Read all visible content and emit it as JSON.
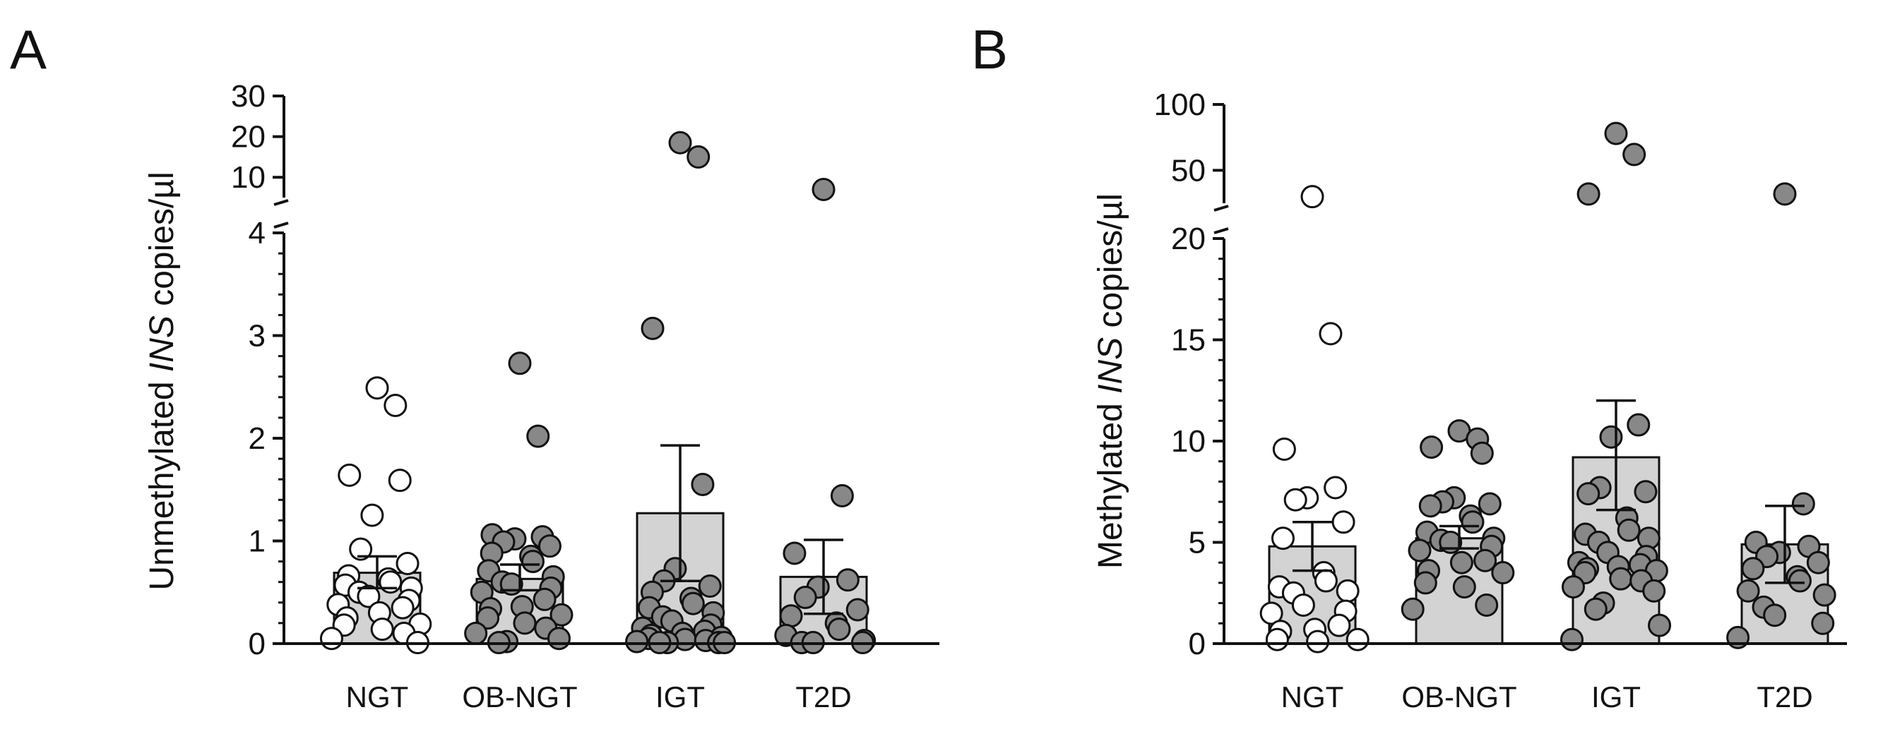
{
  "chart_data": [
    {
      "panel": "A",
      "type": "bar",
      "ylabel_pre": "Unmethylated ",
      "ylabel_it": "INS",
      "ylabel_post": " copies/µl",
      "categories": [
        "NGT",
        "OB-NGT",
        "IGT",
        "T2D"
      ],
      "bar_means": [
        0.69,
        0.63,
        1.27,
        0.65
      ],
      "error_bars": [
        [
          0.54,
          0.85
        ],
        [
          0.52,
          0.77
        ],
        [
          0.61,
          1.93
        ],
        [
          0.29,
          1.01
        ]
      ],
      "ylim_lower": [
        0,
        4
      ],
      "yticks_lower": [
        0,
        1,
        2,
        3,
        4
      ],
      "ylim_upper": [
        5,
        30
      ],
      "yticks_upper": [
        10,
        20,
        30
      ],
      "axis_break": true,
      "points": [
        [
          2.49,
          2.32,
          1.64,
          1.59,
          1.25,
          0.92,
          0.78,
          0.66,
          0.63,
          0.6,
          0.57,
          0.54,
          0.5,
          0.46,
          0.42,
          0.38,
          0.35,
          0.3,
          0.25,
          0.19,
          0.18,
          0.14,
          0.1,
          0.05,
          0.01
        ],
        [
          2.73,
          2.02,
          1.06,
          1.04,
          1.02,
          0.99,
          0.95,
          0.88,
          0.85,
          0.8,
          0.71,
          0.65,
          0.6,
          0.58,
          0.54,
          0.5,
          0.43,
          0.36,
          0.34,
          0.28,
          0.25,
          0.2,
          0.15,
          0.1,
          0.05,
          0.02,
          0.01
        ],
        [
          18.5,
          15.0,
          3.07,
          1.55,
          0.73,
          0.61,
          0.56,
          0.5,
          0.44,
          0.39,
          0.35,
          0.3,
          0.26,
          0.22,
          0.18,
          0.15,
          0.12,
          0.1,
          0.08,
          0.06,
          0.05,
          0.04,
          0.03,
          0.02,
          0.01,
          0.01,
          0.01,
          0.01
        ],
        [
          7.0,
          1.44,
          0.88,
          0.62,
          0.55,
          0.45,
          0.33,
          0.27,
          0.2,
          0.14,
          0.08,
          0.03,
          0.01,
          0.01,
          0.01
        ]
      ],
      "marker_fill": [
        "#ffffff",
        "#888888",
        "#888888",
        "#888888"
      ]
    },
    {
      "panel": "B",
      "type": "bar",
      "ylabel_pre": "Methylated ",
      "ylabel_it": "INS",
      "ylabel_post": " copies/µl",
      "categories": [
        "NGT",
        "OB-NGT",
        "IGT",
        "T2D"
      ],
      "bar_means": [
        4.8,
        5.2,
        9.2,
        4.9
      ],
      "error_bars": [
        [
          3.6,
          6.0
        ],
        [
          4.7,
          5.8
        ],
        [
          6.6,
          12.0
        ],
        [
          3.0,
          6.8
        ]
      ],
      "ylim_lower": [
        0,
        20
      ],
      "yticks_lower": [
        0,
        5,
        10,
        15,
        20
      ],
      "ylim_upper": [
        25,
        100
      ],
      "yticks_upper": [
        50,
        100
      ],
      "axis_break": true,
      "points": [
        [
          30.0,
          15.3,
          9.6,
          7.7,
          7.2,
          7.1,
          6.0,
          5.2,
          3.5,
          3.1,
          2.8,
          2.6,
          2.5,
          1.9,
          1.6,
          1.5,
          0.9,
          0.7,
          0.6,
          0.2,
          0.2,
          0.1
        ],
        [
          10.5,
          10.1,
          9.7,
          9.4,
          7.2,
          7.0,
          6.9,
          6.8,
          6.3,
          6.0,
          5.5,
          5.2,
          5.1,
          5.0,
          4.8,
          4.6,
          4.1,
          4.0,
          3.6,
          3.5,
          3.0,
          2.8,
          1.9,
          1.7
        ],
        [
          78,
          62,
          32,
          10.8,
          10.2,
          7.7,
          7.5,
          7.4,
          6.2,
          5.6,
          5.4,
          5.2,
          5.0,
          4.5,
          4.3,
          4.0,
          3.9,
          3.8,
          3.7,
          3.6,
          3.5,
          3.2,
          3.1,
          2.8,
          2.6,
          2.0,
          1.7,
          0.9,
          0.2
        ],
        [
          32,
          6.9,
          5.0,
          4.8,
          4.5,
          4.3,
          4.0,
          3.7,
          3.3,
          3.1,
          2.6,
          2.4,
          1.8,
          1.4,
          1.0,
          0.3
        ]
      ],
      "marker_fill": [
        "#ffffff",
        "#888888",
        "#888888",
        "#888888"
      ]
    }
  ]
}
